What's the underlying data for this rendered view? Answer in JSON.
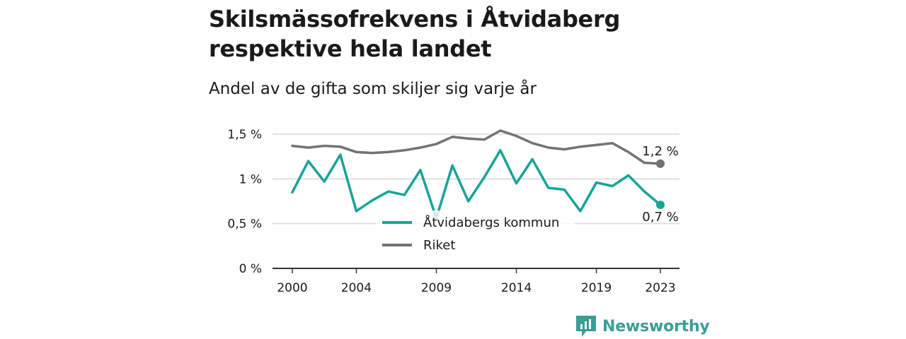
{
  "header": {
    "title": "Skilsmässofrekvens i Åtvidaberg respektive hela landet",
    "subtitle": "Andel av de gifta som skiljer sig varje år"
  },
  "brand": {
    "name": "Newsworthy"
  },
  "colors": {
    "kommun": "#17a398",
    "riket": "#737373",
    "grid": "#d9d9d9",
    "brand": "#3a9e95"
  },
  "chart_data": {
    "type": "line",
    "title": "Skilsmässofrekvens i Åtvidaberg respektive hela landet",
    "subtitle": "Andel av de gifta som skiljer sig varje år",
    "xlabel": "",
    "ylabel": "",
    "x": [
      2000,
      2001,
      2002,
      2003,
      2004,
      2005,
      2006,
      2007,
      2008,
      2009,
      2010,
      2011,
      2012,
      2013,
      2014,
      2015,
      2016,
      2017,
      2018,
      2019,
      2020,
      2021,
      2022,
      2023
    ],
    "x_ticks": [
      "2000",
      "2004",
      "2009",
      "2014",
      "2019",
      "2023"
    ],
    "y_ticks": [
      "0 %",
      "0,5 %",
      "1 %",
      "1,5 %"
    ],
    "y_tick_values": [
      0,
      0.5,
      1,
      1.5
    ],
    "ylim": [
      0,
      1.5
    ],
    "grid": true,
    "legend_position": "center",
    "series": [
      {
        "name": "Åtvidabergs kommun",
        "color": "#17a398",
        "end_label": "0,7 %",
        "values": [
          0.85,
          1.2,
          0.97,
          1.27,
          0.64,
          0.76,
          0.86,
          0.82,
          1.1,
          0.56,
          1.15,
          0.75,
          1.02,
          1.32,
          0.95,
          1.22,
          0.9,
          0.88,
          0.64,
          0.96,
          0.92,
          1.04,
          0.86,
          0.71
        ]
      },
      {
        "name": "Riket",
        "color": "#737373",
        "end_label": "1,2 %",
        "values": [
          1.37,
          1.35,
          1.37,
          1.36,
          1.3,
          1.29,
          1.3,
          1.32,
          1.35,
          1.39,
          1.47,
          1.45,
          1.44,
          1.54,
          1.48,
          1.4,
          1.35,
          1.33,
          1.36,
          1.38,
          1.4,
          1.3,
          1.18,
          1.17
        ]
      }
    ]
  }
}
